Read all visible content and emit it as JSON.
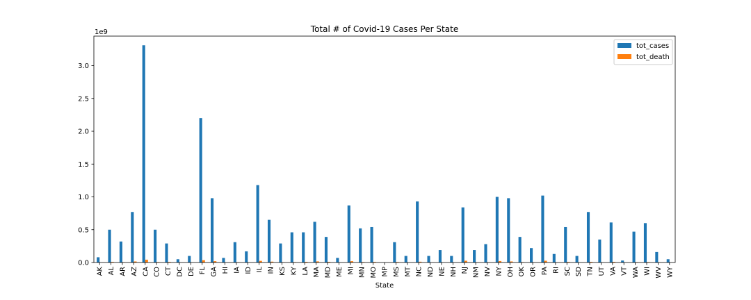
{
  "chart_data": {
    "type": "bar",
    "title": "Total # of Covid-19 Cases Per State",
    "xlabel": "State",
    "ylabel": "",
    "y_offset_label": "1e9",
    "ylim": [
      0,
      3.45
    ],
    "y_ticks": [
      0.0,
      0.5,
      1.0,
      1.5,
      2.0,
      2.5,
      3.0
    ],
    "y_tick_labels": [
      "0.0",
      "0.5",
      "1.0",
      "1.5",
      "2.0",
      "2.5",
      "3.0"
    ],
    "legend_position": "top-right",
    "grid": false,
    "categories": [
      "AK",
      "AL",
      "AR",
      "AZ",
      "CA",
      "CO",
      "CT",
      "DC",
      "DE",
      "FL",
      "GA",
      "HI",
      "IA",
      "ID",
      "IL",
      "IN",
      "KS",
      "KY",
      "LA",
      "MA",
      "MD",
      "ME",
      "MI",
      "MN",
      "MO",
      "MP",
      "MS",
      "MT",
      "NC",
      "ND",
      "NE",
      "NH",
      "NJ",
      "NM",
      "NV",
      "NY",
      "OH",
      "OK",
      "OR",
      "PA",
      "RI",
      "SC",
      "SD",
      "TN",
      "UT",
      "VA",
      "VT",
      "WA",
      "WI",
      "WV",
      "WY"
    ],
    "series": [
      {
        "name": "tot_cases",
        "color": "#1f77b4",
        "values": [
          0.08,
          0.5,
          0.32,
          0.77,
          3.31,
          0.5,
          0.29,
          0.05,
          0.1,
          2.2,
          0.98,
          0.07,
          0.31,
          0.17,
          1.18,
          0.65,
          0.29,
          0.46,
          0.46,
          0.62,
          0.39,
          0.07,
          0.87,
          0.52,
          0.54,
          0.0005,
          0.31,
          0.1,
          0.93,
          0.1,
          0.19,
          0.1,
          0.84,
          0.19,
          0.28,
          1.0,
          0.98,
          0.39,
          0.22,
          1.02,
          0.13,
          0.54,
          0.1,
          0.77,
          0.35,
          0.61,
          0.03,
          0.47,
          0.6,
          0.16,
          0.05
        ]
      },
      {
        "name": "tot_death",
        "color": "#ff7f0e",
        "values": [
          0.0004,
          0.009,
          0.005,
          0.016,
          0.043,
          0.007,
          0.009,
          0.001,
          0.0015,
          0.035,
          0.02,
          0.0005,
          0.005,
          0.002,
          0.025,
          0.013,
          0.004,
          0.006,
          0.01,
          0.017,
          0.01,
          0.001,
          0.02,
          0.007,
          0.009,
          0.0,
          0.008,
          0.001,
          0.012,
          0.001,
          0.002,
          0.001,
          0.027,
          0.004,
          0.005,
          0.022,
          0.016,
          0.006,
          0.003,
          0.027,
          0.003,
          0.009,
          0.0015,
          0.01,
          0.002,
          0.01,
          0.0003,
          0.006,
          0.007,
          0.003,
          0.0008
        ]
      }
    ]
  }
}
